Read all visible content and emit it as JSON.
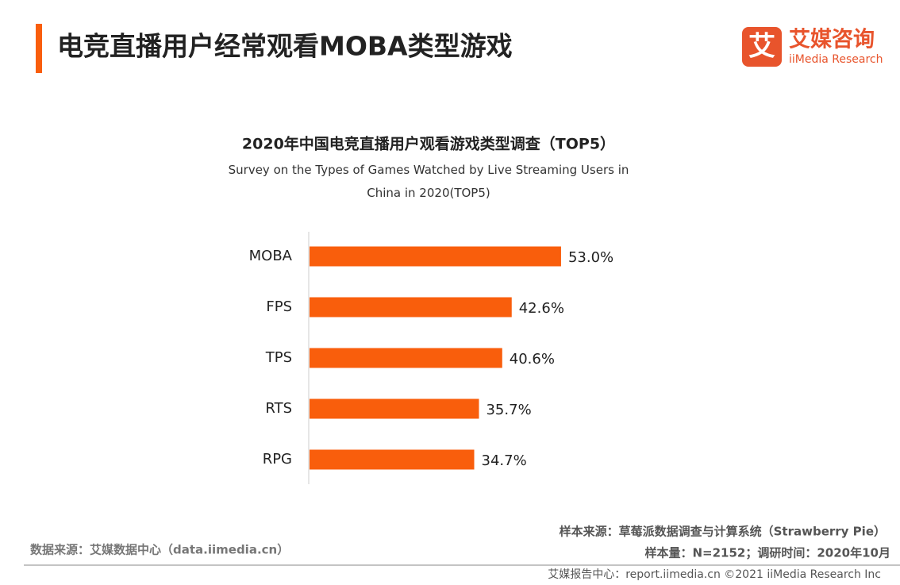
{
  "header": {
    "title": "电竞直播用户经常观看MOBA类型游戏",
    "logo_mark": "艾",
    "logo_cn": "艾媒咨询",
    "logo_en": "iiMedia Research"
  },
  "chart_data": {
    "type": "bar",
    "orientation": "horizontal",
    "title": "2020年中国电竞直播用户观看游戏类型调查（TOP5）",
    "subtitle": "Survey on the Types of Games Watched by Live Streaming Users  in China in 2020(TOP5)",
    "categories": [
      "MOBA",
      "FPS",
      "TPS",
      "RTS",
      "RPG"
    ],
    "values": [
      53.0,
      42.6,
      40.6,
      35.7,
      34.7
    ],
    "value_labels": [
      "53.0%",
      "42.6%",
      "40.6%",
      "35.7%",
      "34.7%"
    ],
    "color": "#f95e0c"
  },
  "footer": {
    "source": "数据来源：艾媒数据中心（data.iimedia.cn）",
    "sample_source": "样本来源：草莓派数据调查与计算系统（Strawberry Pie）",
    "sample_info": "样本量：N=2152；调研时间：2020年10月",
    "copyright": "艾媒报告中心：report.iimedia.cn ©2021  iiMedia Research  Inc"
  }
}
